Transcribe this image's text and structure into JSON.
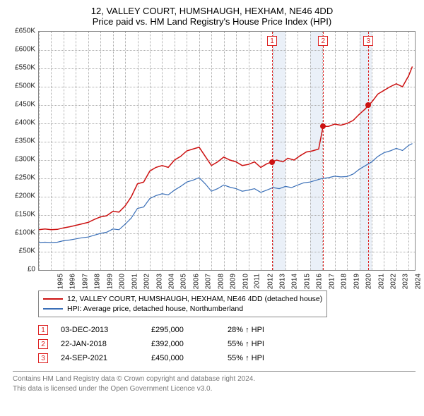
{
  "title": "12, VALLEY COURT, HUMSHAUGH, HEXHAM, NE46 4DD",
  "subtitle": "Price paid vs. HM Land Registry's House Price Index (HPI)",
  "chart": {
    "type": "line",
    "background_color": "#ffffff",
    "grid_color": "#aaaaaa",
    "text_color": "#222222",
    "title_fontsize": 13,
    "label_fontsize": 10,
    "ylim": [
      0,
      650000
    ],
    "ytick_step": 50000,
    "y_ticks": [
      "£0",
      "£50K",
      "£100K",
      "£150K",
      "£200K",
      "£250K",
      "£300K",
      "£350K",
      "£400K",
      "£450K",
      "£500K",
      "£550K",
      "£600K",
      "£650K"
    ],
    "xlim": [
      1995,
      2025.5
    ],
    "x_ticks": [
      1995,
      1996,
      1997,
      1998,
      1999,
      2000,
      2001,
      2002,
      2003,
      2004,
      2005,
      2006,
      2007,
      2008,
      2009,
      2010,
      2011,
      2012,
      2013,
      2014,
      2015,
      2016,
      2017,
      2018,
      2019,
      2020,
      2021,
      2022,
      2023,
      2024,
      2025
    ],
    "series": [
      {
        "name": "price_paid",
        "label": "12, VALLEY COURT, HUMSHAUGH, HEXHAM, NE46 4DD (detached house)",
        "color": "#cc1111",
        "line_width": 1.5,
        "points": [
          [
            1995,
            110000
          ],
          [
            1995.5,
            112000
          ],
          [
            1996,
            110000
          ],
          [
            1996.5,
            111000
          ],
          [
            1997,
            115000
          ],
          [
            1997.5,
            118000
          ],
          [
            1998,
            122000
          ],
          [
            1998.5,
            126000
          ],
          [
            1999,
            130000
          ],
          [
            1999.5,
            138000
          ],
          [
            2000,
            145000
          ],
          [
            2000.5,
            148000
          ],
          [
            2001,
            160000
          ],
          [
            2001.5,
            158000
          ],
          [
            2002,
            175000
          ],
          [
            2002.5,
            200000
          ],
          [
            2003,
            235000
          ],
          [
            2003.5,
            240000
          ],
          [
            2004,
            270000
          ],
          [
            2004.5,
            280000
          ],
          [
            2005,
            285000
          ],
          [
            2005.5,
            280000
          ],
          [
            2006,
            300000
          ],
          [
            2006.5,
            310000
          ],
          [
            2007,
            325000
          ],
          [
            2007.5,
            330000
          ],
          [
            2008,
            335000
          ],
          [
            2008.5,
            310000
          ],
          [
            2009,
            285000
          ],
          [
            2009.5,
            295000
          ],
          [
            2010,
            308000
          ],
          [
            2010.5,
            300000
          ],
          [
            2011,
            295000
          ],
          [
            2011.5,
            285000
          ],
          [
            2012,
            288000
          ],
          [
            2012.5,
            295000
          ],
          [
            2013,
            280000
          ],
          [
            2013.5,
            290000
          ],
          [
            2013.92,
            295000
          ],
          [
            2014.3,
            300000
          ],
          [
            2014.8,
            295000
          ],
          [
            2015.2,
            305000
          ],
          [
            2015.7,
            300000
          ],
          [
            2016.2,
            312000
          ],
          [
            2016.7,
            322000
          ],
          [
            2017.2,
            325000
          ],
          [
            2017.7,
            330000
          ],
          [
            2018.06,
            392000
          ],
          [
            2018.5,
            392000
          ],
          [
            2019,
            398000
          ],
          [
            2019.5,
            395000
          ],
          [
            2020,
            400000
          ],
          [
            2020.5,
            408000
          ],
          [
            2021,
            425000
          ],
          [
            2021.5,
            440000
          ],
          [
            2021.73,
            450000
          ],
          [
            2022,
            458000
          ],
          [
            2022.5,
            480000
          ],
          [
            2023,
            490000
          ],
          [
            2023.5,
            500000
          ],
          [
            2024,
            508000
          ],
          [
            2024.5,
            500000
          ],
          [
            2025,
            530000
          ],
          [
            2025.3,
            555000
          ]
        ]
      },
      {
        "name": "hpi",
        "label": "HPI: Average price, detached house, Northumberland",
        "color": "#3a6fb7",
        "line_width": 1.2,
        "points": [
          [
            1995,
            75000
          ],
          [
            1995.5,
            76000
          ],
          [
            1996,
            75000
          ],
          [
            1996.5,
            76000
          ],
          [
            1997,
            80000
          ],
          [
            1997.5,
            82000
          ],
          [
            1998,
            85000
          ],
          [
            1998.5,
            88000
          ],
          [
            1999,
            90000
          ],
          [
            1999.5,
            95000
          ],
          [
            2000,
            100000
          ],
          [
            2000.5,
            103000
          ],
          [
            2001,
            112000
          ],
          [
            2001.5,
            110000
          ],
          [
            2002,
            125000
          ],
          [
            2002.5,
            142000
          ],
          [
            2003,
            168000
          ],
          [
            2003.5,
            172000
          ],
          [
            2004,
            195000
          ],
          [
            2004.5,
            203000
          ],
          [
            2005,
            208000
          ],
          [
            2005.5,
            205000
          ],
          [
            2006,
            218000
          ],
          [
            2006.5,
            228000
          ],
          [
            2007,
            240000
          ],
          [
            2007.5,
            245000
          ],
          [
            2008,
            252000
          ],
          [
            2008.5,
            235000
          ],
          [
            2009,
            215000
          ],
          [
            2009.5,
            222000
          ],
          [
            2010,
            232000
          ],
          [
            2010.5,
            226000
          ],
          [
            2011,
            222000
          ],
          [
            2011.5,
            215000
          ],
          [
            2012,
            218000
          ],
          [
            2012.5,
            222000
          ],
          [
            2013,
            212000
          ],
          [
            2013.5,
            218000
          ],
          [
            2014,
            225000
          ],
          [
            2014.5,
            222000
          ],
          [
            2015,
            228000
          ],
          [
            2015.5,
            225000
          ],
          [
            2016,
            232000
          ],
          [
            2016.5,
            238000
          ],
          [
            2017,
            240000
          ],
          [
            2017.5,
            245000
          ],
          [
            2018,
            250000
          ],
          [
            2018.5,
            252000
          ],
          [
            2019,
            256000
          ],
          [
            2019.5,
            254000
          ],
          [
            2020,
            255000
          ],
          [
            2020.5,
            262000
          ],
          [
            2021,
            275000
          ],
          [
            2021.5,
            285000
          ],
          [
            2022,
            295000
          ],
          [
            2022.5,
            310000
          ],
          [
            2023,
            320000
          ],
          [
            2023.5,
            325000
          ],
          [
            2024,
            332000
          ],
          [
            2024.5,
            326000
          ],
          [
            2025,
            340000
          ],
          [
            2025.3,
            345000
          ]
        ]
      }
    ],
    "shaded_bands": [
      {
        "from": 2014,
        "to": 2015,
        "color": "#eaf0f8"
      },
      {
        "from": 2017,
        "to": 2018,
        "color": "#eaf0f8"
      },
      {
        "from": 2021,
        "to": 2022,
        "color": "#eaf0f8"
      }
    ],
    "sale_markers": [
      {
        "n": "1",
        "x": 2013.92,
        "y": 295000
      },
      {
        "n": "2",
        "x": 2018.06,
        "y": 392000
      },
      {
        "n": "3",
        "x": 2021.73,
        "y": 450000
      }
    ]
  },
  "legend": {
    "item1_color": "#cc1111",
    "item2_color": "#3a6fb7"
  },
  "sales": [
    {
      "n": "1",
      "date": "03-DEC-2013",
      "price": "£295,000",
      "pct": "28% ↑ HPI"
    },
    {
      "n": "2",
      "date": "22-JAN-2018",
      "price": "£392,000",
      "pct": "55% ↑ HPI"
    },
    {
      "n": "3",
      "date": "24-SEP-2021",
      "price": "£450,000",
      "pct": "55% ↑ HPI"
    }
  ],
  "footer": {
    "line1": "Contains HM Land Registry data © Crown copyright and database right 2024.",
    "line2": "This data is licensed under the Open Government Licence v3.0."
  }
}
